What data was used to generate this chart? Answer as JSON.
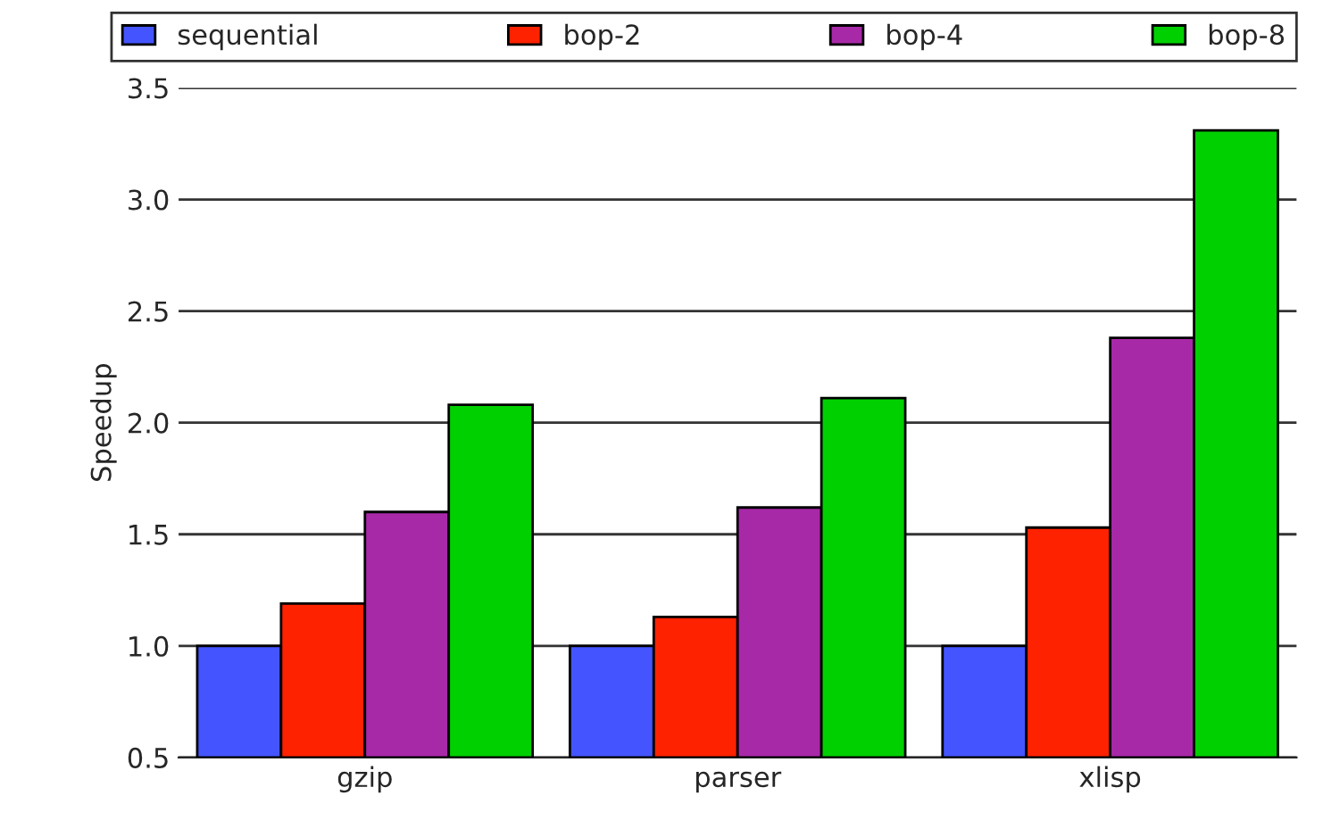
{
  "chart_data": {
    "type": "bar",
    "ylabel": "Speedup",
    "categories": [
      "gzip",
      "parser",
      "xlisp"
    ],
    "series": [
      {
        "name": "sequential",
        "color": "#4455ff",
        "values": [
          1.0,
          1.0,
          1.0
        ]
      },
      {
        "name": "bop-2",
        "color": "#ff2200",
        "values": [
          1.19,
          1.13,
          1.53
        ]
      },
      {
        "name": "bop-4",
        "color": "#a829a8",
        "values": [
          1.6,
          1.62,
          2.38
        ]
      },
      {
        "name": "bop-8",
        "color": "#00d000",
        "values": [
          2.08,
          2.11,
          3.31
        ]
      }
    ],
    "ylim": [
      0.5,
      3.5
    ],
    "yticks": [
      {
        "value": 0.5,
        "label": "0.5"
      },
      {
        "value": 1.0,
        "label": "1.0"
      },
      {
        "value": 1.5,
        "label": "1.5"
      },
      {
        "value": 2.0,
        "label": "2.0"
      },
      {
        "value": 2.5,
        "label": "2.5"
      },
      {
        "value": 3.0,
        "label": "3.0"
      },
      {
        "value": 3.5,
        "label": "3.5"
      }
    ],
    "grid": "y",
    "legend": "top"
  }
}
